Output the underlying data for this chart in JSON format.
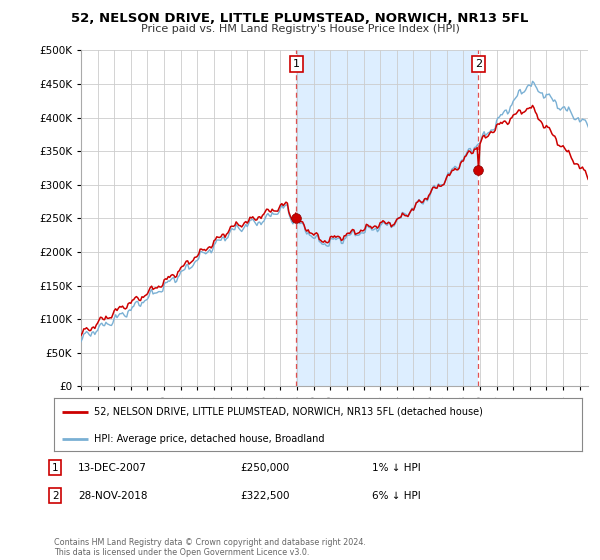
{
  "title": "52, NELSON DRIVE, LITTLE PLUMSTEAD, NORWICH, NR13 5FL",
  "subtitle": "Price paid vs. HM Land Registry's House Price Index (HPI)",
  "ytick_values": [
    0,
    50000,
    100000,
    150000,
    200000,
    250000,
    300000,
    350000,
    400000,
    450000,
    500000
  ],
  "ylim": [
    0,
    500000
  ],
  "x_start_year": 1995,
  "x_end_year": 2025,
  "hpi_color": "#7ab0d4",
  "price_color": "#cc0000",
  "shade_color": "#ddeeff",
  "sale1_year": 2007.95,
  "sale1_price": 250000,
  "sale2_year": 2018.91,
  "sale2_price": 322500,
  "legend_label1": "52, NELSON DRIVE, LITTLE PLUMSTEAD, NORWICH, NR13 5FL (detached house)",
  "legend_label2": "HPI: Average price, detached house, Broadland",
  "note1_num": "1",
  "note1_date": "13-DEC-2007",
  "note1_price": "£250,000",
  "note1_hpi": "1% ↓ HPI",
  "note2_num": "2",
  "note2_date": "28-NOV-2018",
  "note2_price": "£322,500",
  "note2_hpi": "6% ↓ HPI",
  "footer": "Contains HM Land Registry data © Crown copyright and database right 2024.\nThis data is licensed under the Open Government Licence v3.0.",
  "background_color": "#ffffff",
  "plot_bg_color": "#ffffff"
}
